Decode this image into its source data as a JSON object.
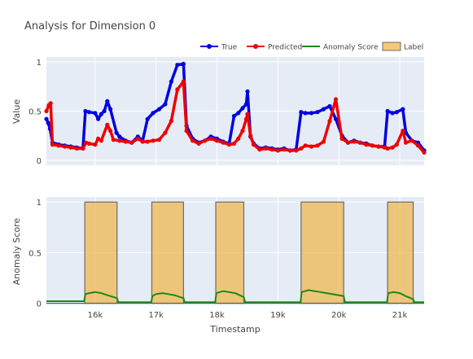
{
  "chart_data": {
    "title": "Analysis for Dimension 0",
    "legend": {
      "placement": "top-right",
      "items": [
        {
          "name": "True",
          "color": "#0000e0",
          "marker": "line-dot"
        },
        {
          "name": "Predicted",
          "color": "#ee0000",
          "marker": "line-dot"
        },
        {
          "name": "Anomaly Score",
          "color": "#1a8a1a",
          "marker": "line"
        },
        {
          "name": "Label",
          "color": "#f0b64a",
          "marker": "box"
        }
      ]
    },
    "panels": [
      {
        "type": "line",
        "ylabel": "Value",
        "xlim": [
          15200,
          21400
        ],
        "ylim": [
          -0.05,
          1.05
        ],
        "yticks": [
          0,
          0.5,
          1
        ],
        "ytick_labels": [
          "0",
          "0.5",
          "1"
        ],
        "grid": true,
        "series": [
          {
            "name": "True",
            "color": "#0000e0",
            "points": [
              [
                15200,
                0.42
              ],
              [
                15230,
                0.38
              ],
              [
                15260,
                0.32
              ],
              [
                15300,
                0.18
              ],
              [
                15400,
                0.16
              ],
              [
                15500,
                0.15
              ],
              [
                15600,
                0.14
              ],
              [
                15700,
                0.13
              ],
              [
                15800,
                0.12
              ],
              [
                15840,
                0.5
              ],
              [
                15900,
                0.49
              ],
              [
                16000,
                0.48
              ],
              [
                16050,
                0.42
              ],
              [
                16100,
                0.47
              ],
              [
                16150,
                0.5
              ],
              [
                16200,
                0.6
              ],
              [
                16250,
                0.52
              ],
              [
                16350,
                0.28
              ],
              [
                16400,
                0.24
              ],
              [
                16500,
                0.2
              ],
              [
                16600,
                0.18
              ],
              [
                16700,
                0.24
              ],
              [
                16780,
                0.2
              ],
              [
                16860,
                0.42
              ],
              [
                16950,
                0.48
              ],
              [
                17050,
                0.52
              ],
              [
                17150,
                0.57
              ],
              [
                17250,
                0.8
              ],
              [
                17350,
                0.97
              ],
              [
                17450,
                0.98
              ],
              [
                17500,
                0.35
              ],
              [
                17600,
                0.22
              ],
              [
                17700,
                0.18
              ],
              [
                17800,
                0.2
              ],
              [
                17900,
                0.24
              ],
              [
                18000,
                0.22
              ],
              [
                18100,
                0.19
              ],
              [
                18200,
                0.17
              ],
              [
                18280,
                0.45
              ],
              [
                18350,
                0.48
              ],
              [
                18420,
                0.53
              ],
              [
                18480,
                0.57
              ],
              [
                18500,
                0.7
              ],
              [
                18550,
                0.24
              ],
              [
                18600,
                0.17
              ],
              [
                18700,
                0.12
              ],
              [
                18800,
                0.13
              ],
              [
                18900,
                0.12
              ],
              [
                19000,
                0.11
              ],
              [
                19100,
                0.12
              ],
              [
                19200,
                0.1
              ],
              [
                19300,
                0.11
              ],
              [
                19380,
                0.49
              ],
              [
                19450,
                0.48
              ],
              [
                19550,
                0.48
              ],
              [
                19650,
                0.49
              ],
              [
                19750,
                0.52
              ],
              [
                19850,
                0.55
              ],
              [
                19950,
                0.42
              ],
              [
                20050,
                0.25
              ],
              [
                20150,
                0.18
              ],
              [
                20250,
                0.2
              ],
              [
                20350,
                0.18
              ],
              [
                20450,
                0.17
              ],
              [
                20550,
                0.15
              ],
              [
                20650,
                0.14
              ],
              [
                20750,
                0.14
              ],
              [
                20800,
                0.5
              ],
              [
                20880,
                0.48
              ],
              [
                20950,
                0.49
              ],
              [
                21050,
                0.52
              ],
              [
                21100,
                0.28
              ],
              [
                21200,
                0.2
              ],
              [
                21300,
                0.18
              ],
              [
                21400,
                0.1
              ]
            ]
          },
          {
            "name": "Predicted",
            "color": "#ee0000",
            "points": [
              [
                15200,
                0.5
              ],
              [
                15240,
                0.56
              ],
              [
                15270,
                0.58
              ],
              [
                15300,
                0.16
              ],
              [
                15400,
                0.15
              ],
              [
                15500,
                0.14
              ],
              [
                15600,
                0.13
              ],
              [
                15700,
                0.12
              ],
              [
                15800,
                0.12
              ],
              [
                15850,
                0.18
              ],
              [
                15900,
                0.17
              ],
              [
                16000,
                0.16
              ],
              [
                16050,
                0.22
              ],
              [
                16100,
                0.2
              ],
              [
                16200,
                0.36
              ],
              [
                16250,
                0.3
              ],
              [
                16300,
                0.21
              ],
              [
                16400,
                0.2
              ],
              [
                16500,
                0.19
              ],
              [
                16600,
                0.18
              ],
              [
                16700,
                0.22
              ],
              [
                16780,
                0.19
              ],
              [
                16860,
                0.19
              ],
              [
                16950,
                0.2
              ],
              [
                17050,
                0.21
              ],
              [
                17150,
                0.28
              ],
              [
                17250,
                0.4
              ],
              [
                17350,
                0.72
              ],
              [
                17450,
                0.8
              ],
              [
                17500,
                0.3
              ],
              [
                17600,
                0.2
              ],
              [
                17700,
                0.17
              ],
              [
                17800,
                0.2
              ],
              [
                17900,
                0.22
              ],
              [
                18000,
                0.2
              ],
              [
                18100,
                0.18
              ],
              [
                18200,
                0.16
              ],
              [
                18280,
                0.17
              ],
              [
                18350,
                0.22
              ],
              [
                18420,
                0.3
              ],
              [
                18480,
                0.42
              ],
              [
                18500,
                0.47
              ],
              [
                18550,
                0.25
              ],
              [
                18600,
                0.16
              ],
              [
                18700,
                0.11
              ],
              [
                18800,
                0.12
              ],
              [
                18900,
                0.11
              ],
              [
                19000,
                0.1
              ],
              [
                19100,
                0.11
              ],
              [
                19200,
                0.1
              ],
              [
                19300,
                0.1
              ],
              [
                19380,
                0.12
              ],
              [
                19450,
                0.15
              ],
              [
                19550,
                0.14
              ],
              [
                19650,
                0.15
              ],
              [
                19750,
                0.19
              ],
              [
                19850,
                0.4
              ],
              [
                19950,
                0.62
              ],
              [
                20050,
                0.22
              ],
              [
                20150,
                0.18
              ],
              [
                20250,
                0.19
              ],
              [
                20350,
                0.18
              ],
              [
                20450,
                0.16
              ],
              [
                20550,
                0.15
              ],
              [
                20650,
                0.14
              ],
              [
                20750,
                0.13
              ],
              [
                20800,
                0.12
              ],
              [
                20880,
                0.13
              ],
              [
                20950,
                0.16
              ],
              [
                21050,
                0.3
              ],
              [
                21100,
                0.18
              ],
              [
                21200,
                0.2
              ],
              [
                21300,
                0.15
              ],
              [
                21400,
                0.08
              ]
            ]
          }
        ]
      },
      {
        "type": "area",
        "ylabel": "Anomaly Score",
        "xlabel": "Timestamp",
        "xlim": [
          15200,
          21400
        ],
        "ylim": [
          -0.02,
          1.05
        ],
        "yticks": [
          0,
          0.5,
          1
        ],
        "ytick_labels": [
          "0",
          "0.5",
          "1"
        ],
        "xticks": [
          16000,
          17000,
          18000,
          19000,
          20000,
          21000
        ],
        "xtick_labels": [
          "16k",
          "17k",
          "18k",
          "19k",
          "20k",
          "21k"
        ],
        "grid": true,
        "label_intervals": [
          [
            15830,
            16360
          ],
          [
            16930,
            17450
          ],
          [
            17980,
            18440
          ],
          [
            19380,
            20080
          ],
          [
            20800,
            21220
          ]
        ],
        "anomaly_score": [
          [
            15200,
            0.02
          ],
          [
            15820,
            0.02
          ],
          [
            15840,
            0.09
          ],
          [
            15900,
            0.1
          ],
          [
            16000,
            0.11
          ],
          [
            16100,
            0.1
          ],
          [
            16200,
            0.08
          ],
          [
            16360,
            0.05
          ],
          [
            16380,
            0.01
          ],
          [
            16920,
            0.01
          ],
          [
            16940,
            0.07
          ],
          [
            17000,
            0.09
          ],
          [
            17100,
            0.1
          ],
          [
            17200,
            0.09
          ],
          [
            17300,
            0.08
          ],
          [
            17450,
            0.05
          ],
          [
            17470,
            0.01
          ],
          [
            17970,
            0.01
          ],
          [
            17990,
            0.1
          ],
          [
            18100,
            0.12
          ],
          [
            18200,
            0.11
          ],
          [
            18300,
            0.1
          ],
          [
            18440,
            0.06
          ],
          [
            18460,
            0.01
          ],
          [
            19370,
            0.01
          ],
          [
            19390,
            0.11
          ],
          [
            19500,
            0.13
          ],
          [
            19600,
            0.12
          ],
          [
            19700,
            0.11
          ],
          [
            19800,
            0.1
          ],
          [
            20080,
            0.07
          ],
          [
            20100,
            0.01
          ],
          [
            20790,
            0.01
          ],
          [
            20810,
            0.1
          ],
          [
            20900,
            0.11
          ],
          [
            21000,
            0.1
          ],
          [
            21100,
            0.07
          ],
          [
            21220,
            0.04
          ],
          [
            21240,
            0.01
          ],
          [
            21400,
            0.01
          ]
        ]
      }
    ]
  }
}
